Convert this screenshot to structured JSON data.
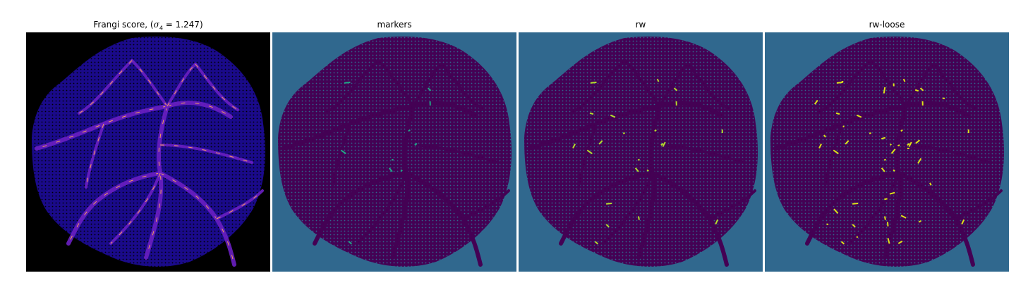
{
  "panels": [
    {
      "title_prefix": "Frangi score, (",
      "title_symbol": "σ",
      "title_subscript": "4",
      "title_suffix": " = 1.247)",
      "colormap": "magma",
      "background": "#000000",
      "body_color": "#1a0a8a",
      "vessel_color": "#6a1fc2",
      "highlight_color": "#f4a15a"
    },
    {
      "title": "markers",
      "colormap": "viridis",
      "background": "#30688e",
      "body_color": "#440154",
      "vessel_color": "#440154",
      "highlight_color": "#21a585"
    },
    {
      "title": "rw",
      "colormap": "viridis",
      "background": "#30688e",
      "body_color": "#440154",
      "vessel_color": "#440154",
      "highlight_color": "#b5de2b"
    },
    {
      "title": "rw-loose",
      "colormap": "viridis",
      "background": "#30688e",
      "body_color": "#440154",
      "vessel_color": "#440154",
      "highlight_color": "#dde318"
    }
  ]
}
